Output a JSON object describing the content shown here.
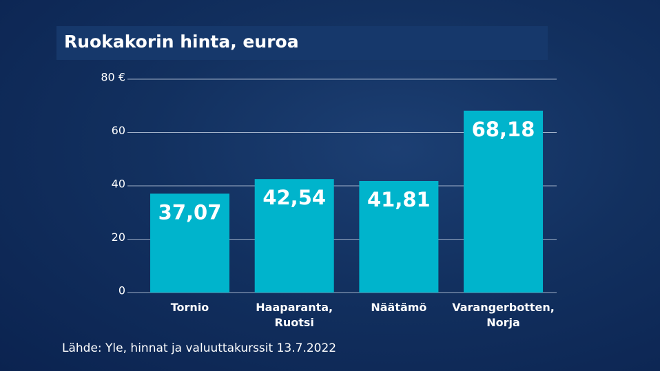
{
  "chart_data": {
    "type": "bar",
    "title": "Ruokakorin hinta, euroa",
    "source": "Lähde: Yle, hinnat ja valuuttakurssit 13.7.2022",
    "categories": [
      "Tornio",
      "Haaparanta, Ruotsi",
      "Näätämö",
      "Varangerbotten, Norja"
    ],
    "values": [
      37.07,
      42.54,
      41.81,
      68.18
    ],
    "value_labels": [
      "37,07",
      "42,54",
      "41,81",
      "68,18"
    ],
    "color": "#00b4cc",
    "ylim": [
      0,
      80
    ],
    "yticks": [
      0,
      20,
      40,
      60,
      {
        "value": 80,
        "label": "80 €"
      }
    ],
    "grid": true
  }
}
